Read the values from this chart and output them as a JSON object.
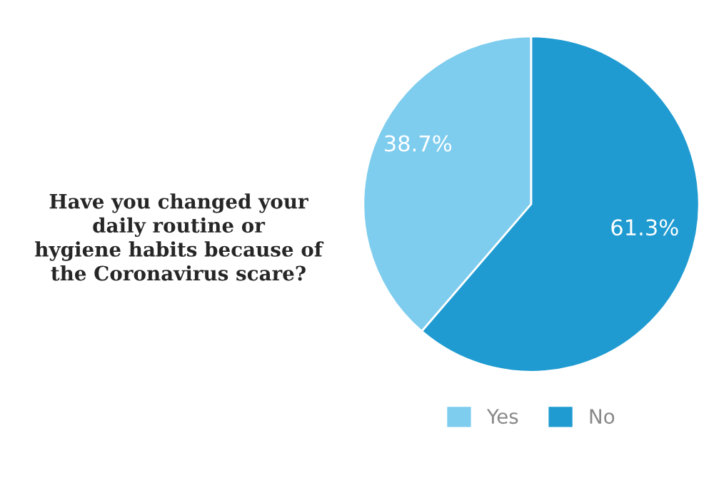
{
  "chart_data": {
    "type": "pie",
    "title": "Have you changed your\ndaily routine or\nhygiene habits because of\nthe Coronavirus scare?",
    "categories": [
      "Yes",
      "No"
    ],
    "values": [
      38.7,
      61.3
    ],
    "colors": [
      "#7fcdee",
      "#1f9bd1"
    ],
    "value_labels": [
      "38.7%",
      "61.3%"
    ],
    "legend": "bottom"
  }
}
